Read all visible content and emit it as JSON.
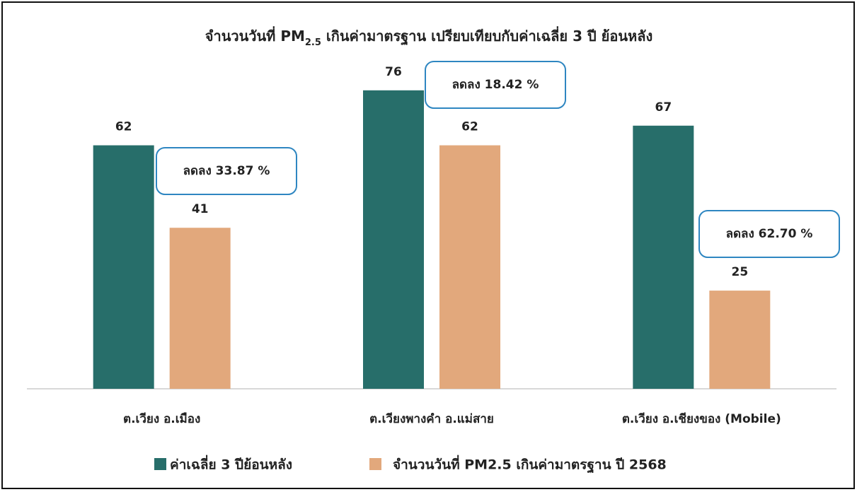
{
  "chart_data": {
    "type": "bar",
    "title": [
      "จำนวนวันที่ PM",
      "2.5",
      " เกินค่ามาตรฐาน เปรียบเทียบกับค่าเฉลี่ย 3 ปี ย้อนหลัง"
    ],
    "categories": [
      "ต.เวียง อ.เมือง",
      "ต.เวียงพางคำ อ.แม่สาย",
      "ต.เวียง อ.เชียงของ (Mobile)"
    ],
    "series": [
      {
        "name": "ค่าเฉลี่ย 3 ปีย้อนหลัง",
        "color": "#276e6a",
        "values": [
          62,
          76,
          67
        ]
      },
      {
        "name": "จำนวนวันที่ PM2.5 เกินค่ามาตรฐาน ปี 2568",
        "color": "#e2a87c",
        "values": [
          41,
          62,
          25
        ]
      }
    ],
    "annotations": [
      "ลดลง 33.87 %",
      "ลดลง 18.42 %",
      "ลดลง 62.70 %"
    ],
    "ylim": [
      0,
      90
    ],
    "legend": "bottom"
  }
}
